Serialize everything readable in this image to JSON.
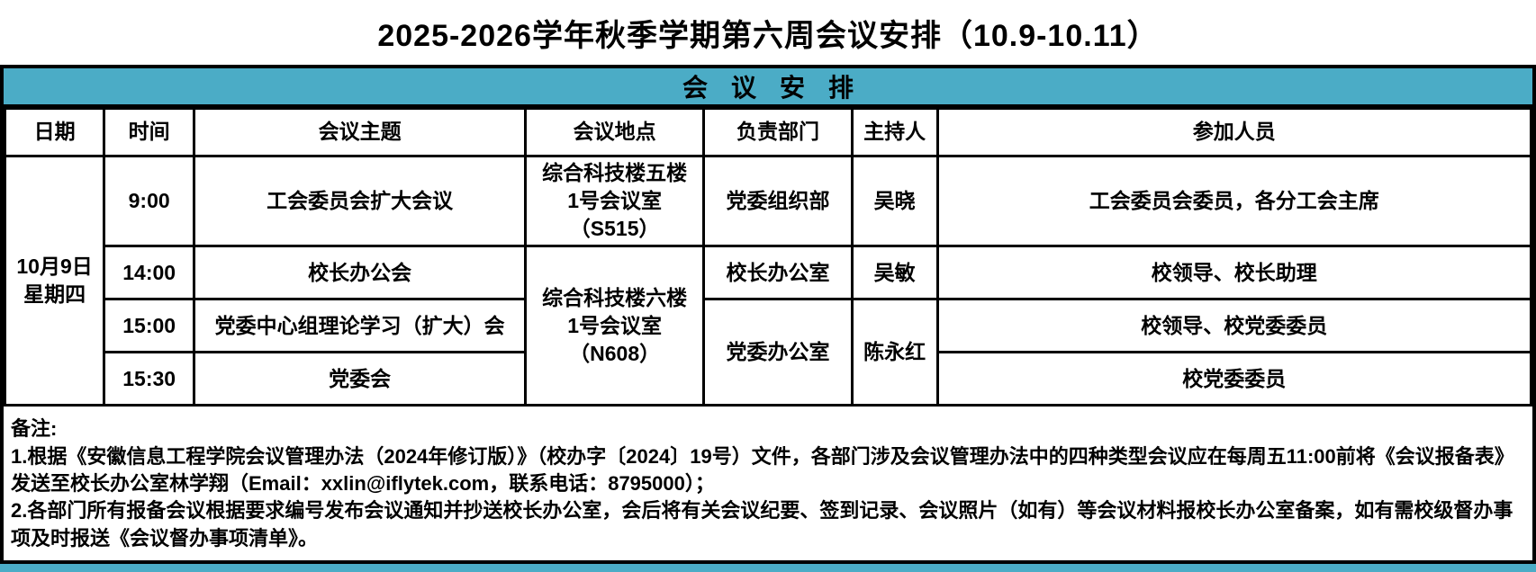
{
  "page_title": "2025-2026学年秋季学期第六周会议安排（10.9-10.11）",
  "banner": {
    "title": "会议安排"
  },
  "colors": {
    "accent_teal": "#4BACC6",
    "border": "#000000"
  },
  "table": {
    "headers": {
      "date": "日期",
      "time": "时间",
      "topic": "会议主题",
      "location": "会议地点",
      "department": "负责部门",
      "host": "主持人",
      "participants": "参加人员"
    },
    "date_group": {
      "line1": "10月9日",
      "line2": "星期四"
    },
    "rows": [
      {
        "time": "9:00",
        "topic": "工会委员会扩大会议",
        "location_line1": "综合科技楼五楼",
        "location_line2": "1号会议室（S515）",
        "department": "党委组织部",
        "host": "吴晓",
        "participants": "工会委员会委员，各分工会主席"
      },
      {
        "time": "14:00",
        "topic": "校长办公会",
        "location_line1": "综合科技楼六楼",
        "location_line2": "1号会议室（N608）",
        "department": "校长办公室",
        "host": "吴敏",
        "participants": "校领导、校长助理"
      },
      {
        "time": "15:00",
        "topic": "党委中心组理论学习（扩大）会",
        "department": "党委办公室",
        "host": "陈永红",
        "participants": "校领导、校党委委员"
      },
      {
        "time": "15:30",
        "topic": "党委会",
        "participants": "校党委委员"
      }
    ]
  },
  "notes": {
    "label": "备注:",
    "items": [
      "1.根据《安徽信息工程学院会议管理办法（2024年修订版）》（校办字〔2024〕19号）文件，各部门涉及会议管理办法中的四种类型会议应在每周五11:00前将《会议报备表》发送至校长办公室林学翔（Email：xxlin@iflytek.com，联系电话：8795000）；",
      "2.各部门所有报备会议根据要求编号发布会议通知并抄送校长办公室，会后将有关会议纪要、签到记录、会议照片（如有）等会议材料报校长办公室备案，如有需校级督办事项及时报送《会议督办事项清单》。"
    ]
  }
}
